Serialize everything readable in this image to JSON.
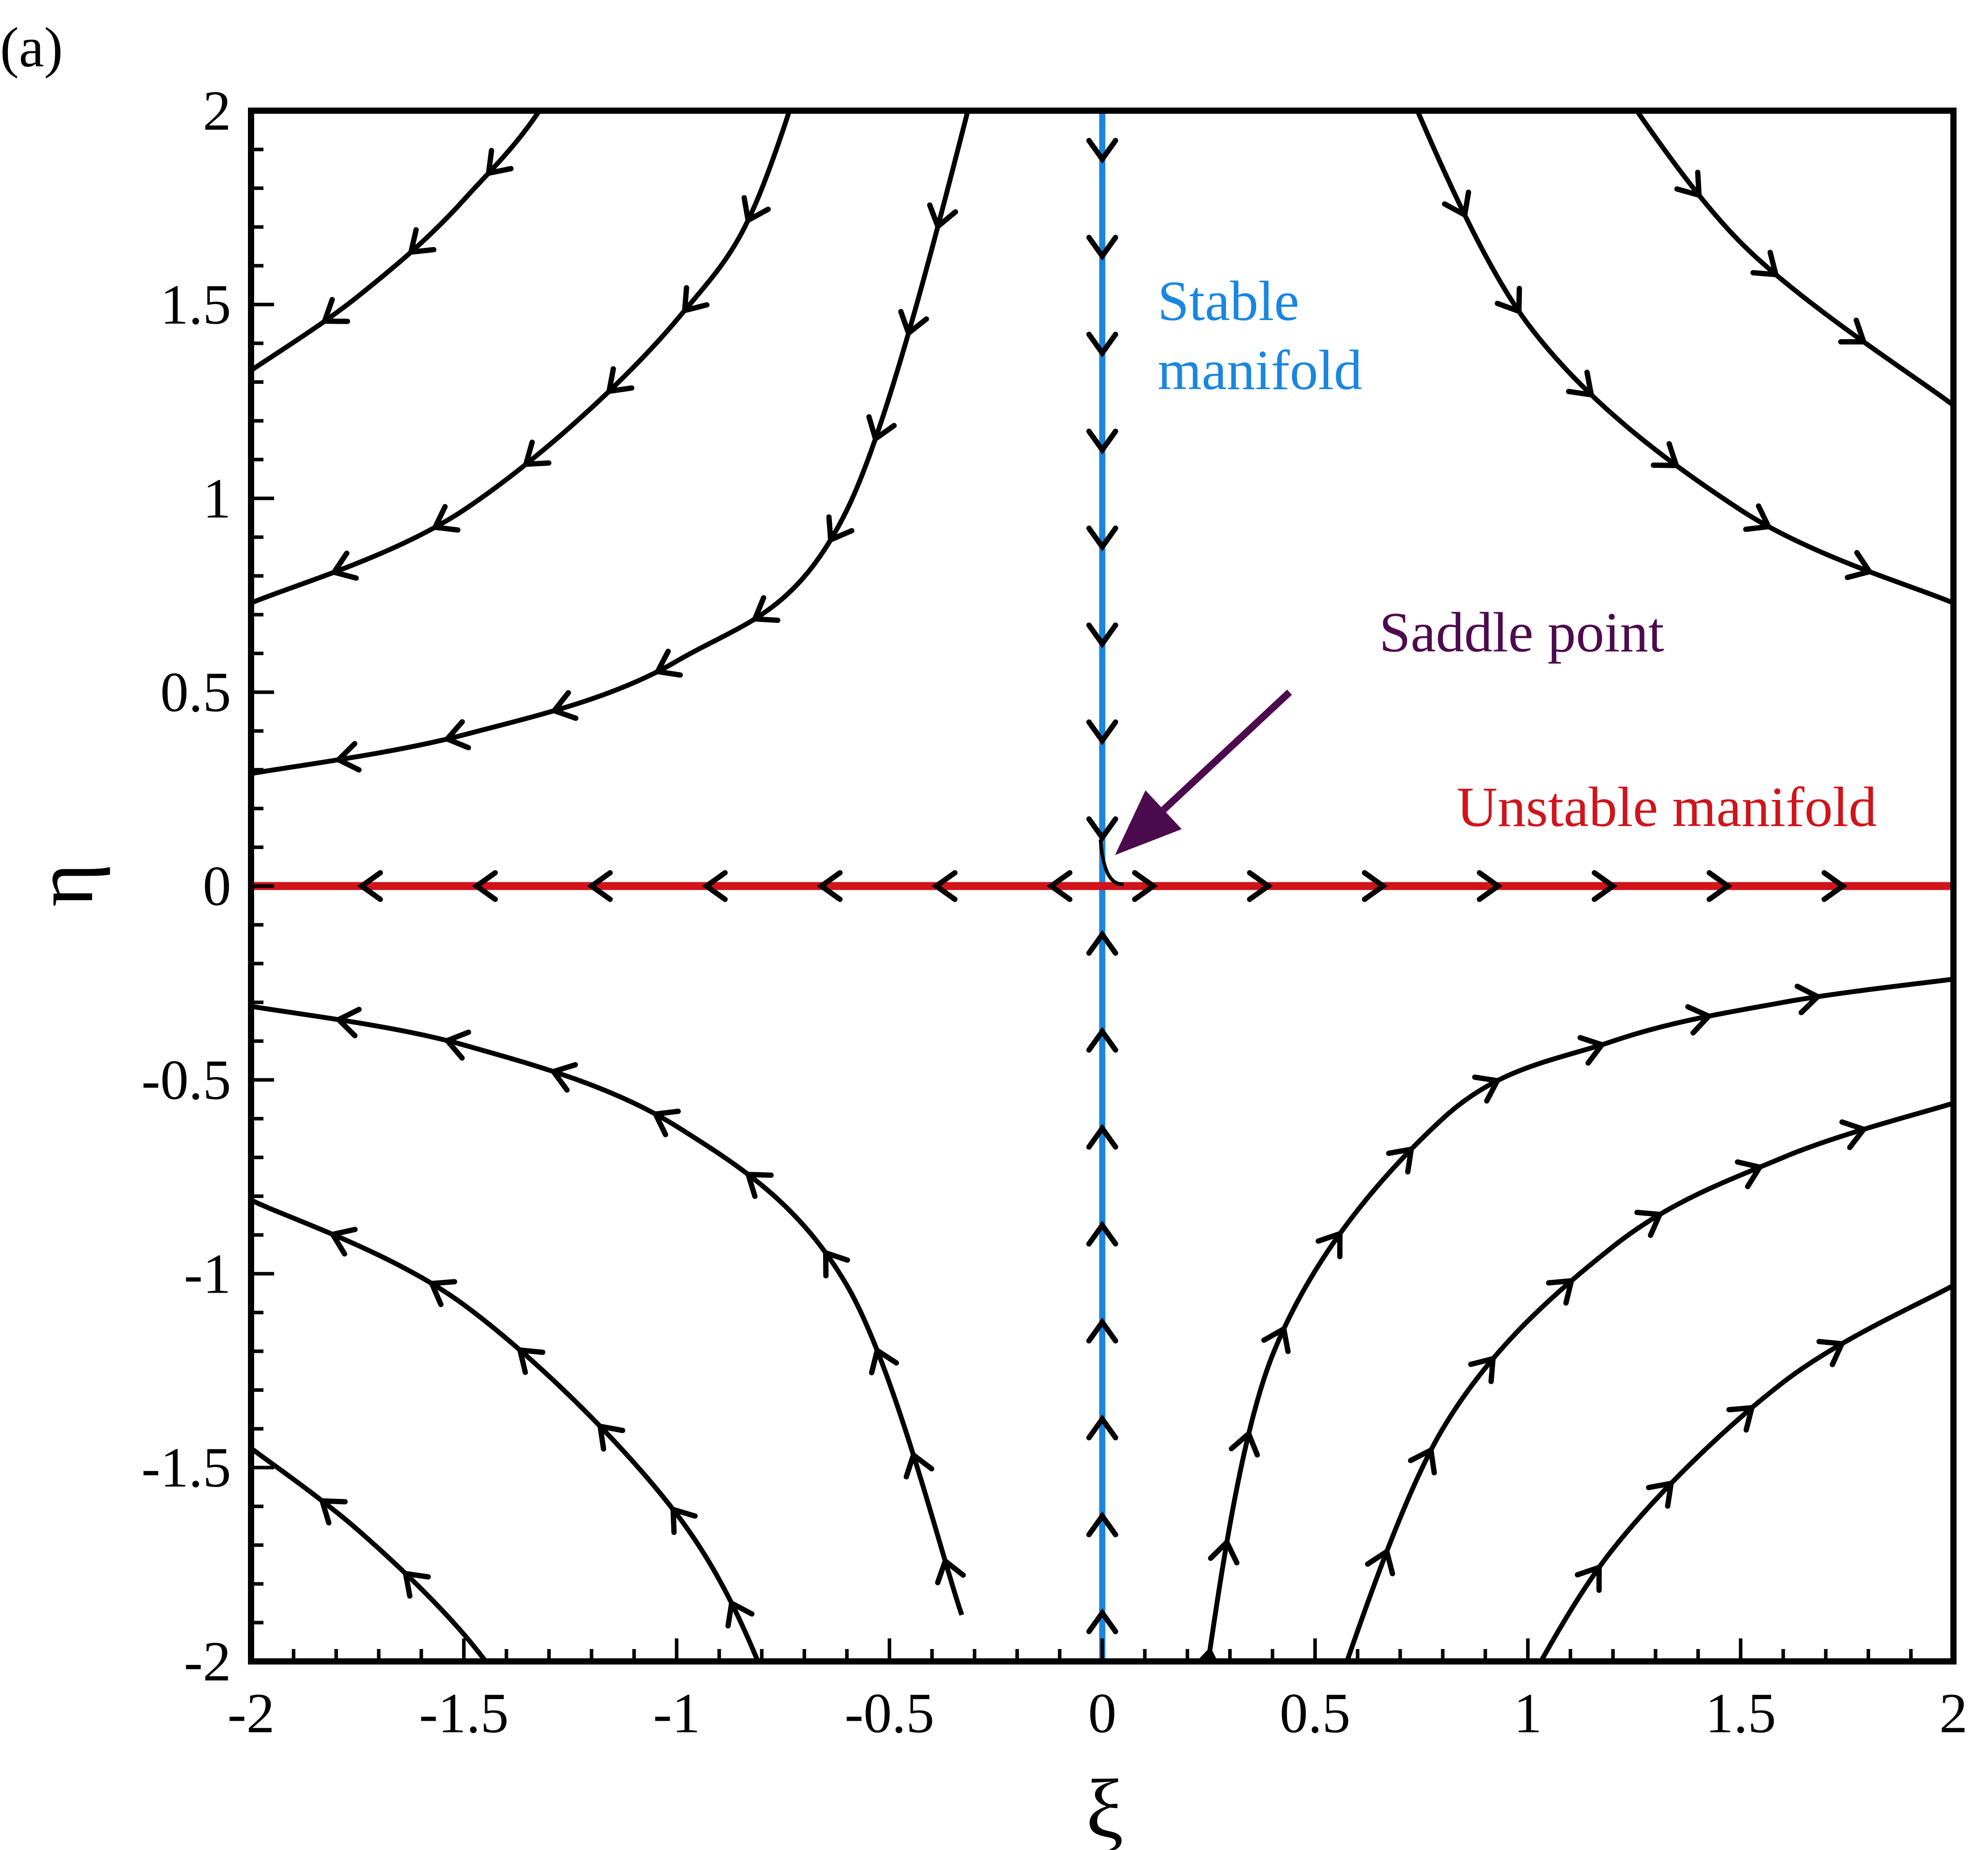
{
  "panel_label": "(a)",
  "chart_data": {
    "type": "line",
    "title": "",
    "xlabel": "ξ",
    "ylabel": "η",
    "xlim": [
      -2,
      2
    ],
    "ylim": [
      -2,
      2
    ],
    "x_ticks": [
      "-2",
      "-1.5",
      "-1",
      "-0.5",
      "0",
      "0.5",
      "1",
      "1.5",
      "2"
    ],
    "y_ticks": [
      "-2",
      "-1.5",
      "-1",
      "-0.5",
      "0",
      "0.5",
      "1",
      "1.5",
      "2"
    ],
    "grid": false,
    "series": [
      {
        "color": "#000000",
        "kind": "trajectory",
        "direction": "outward-left",
        "x": [
          -2.0,
          -1.75,
          -1.5,
          -1.25,
          -0.9
        ],
        "y": [
          1.33,
          1.52,
          1.77,
          2.13,
          2.96
        ]
      },
      {
        "color": "#000000",
        "kind": "trajectory",
        "direction": "outward-left",
        "x": [
          -2.0,
          -1.5,
          -1.0,
          -0.75,
          -0.45
        ],
        "y": [
          0.73,
          0.97,
          1.46,
          1.95,
          3.24
        ]
      },
      {
        "color": "#000000",
        "kind": "trajectory",
        "direction": "outward-left",
        "x": [
          -2.0,
          -1.5,
          -1.0,
          -0.6,
          -0.26
        ],
        "y": [
          0.29,
          0.39,
          0.58,
          0.97,
          2.23
        ]
      },
      {
        "color": "#000000",
        "kind": "trajectory",
        "direction": "outward-right",
        "x": [
          0.66,
          1.0,
          1.5,
          2.0
        ],
        "y": [
          2.2,
          1.45,
          0.97,
          0.73
        ]
      },
      {
        "color": "#000000",
        "kind": "trajectory",
        "direction": "outward-right",
        "x": [
          1.13,
          1.5,
          2.0
        ],
        "y": [
          2.2,
          1.66,
          1.24
        ]
      },
      {
        "color": "#000000",
        "kind": "trajectory",
        "direction": "outward-left",
        "x": [
          -2.0,
          -1.5,
          -1.0,
          -0.6,
          -0.33
        ],
        "y": [
          -0.31,
          -0.41,
          -0.62,
          -1.03,
          -1.88
        ]
      },
      {
        "color": "#000000",
        "kind": "trajectory",
        "direction": "outward-left",
        "x": [
          -2.0,
          -1.5,
          -1.0,
          -0.75,
          -0.6
        ],
        "y": [
          -0.81,
          -1.08,
          -1.62,
          -2.16,
          -2.7
        ]
      },
      {
        "color": "#000000",
        "kind": "trajectory",
        "direction": "outward-left",
        "x": [
          -2.0,
          -1.75,
          -1.5,
          -1.3
        ],
        "y": [
          -1.45,
          -1.66,
          -1.93,
          -2.23
        ]
      },
      {
        "color": "#000000",
        "kind": "trajectory",
        "direction": "outward-right",
        "x": [
          0.22,
          0.4,
          0.8,
          1.2,
          1.6,
          2.0
        ],
        "y": [
          -2.2,
          -1.21,
          -0.6,
          -0.4,
          -0.3,
          -0.24
        ]
      },
      {
        "color": "#000000",
        "kind": "trajectory",
        "direction": "outward-right",
        "x": [
          0.51,
          0.8,
          1.2,
          1.6,
          2.0
        ],
        "y": [
          -2.2,
          -1.4,
          -0.93,
          -0.7,
          -0.56
        ]
      },
      {
        "color": "#000000",
        "kind": "trajectory",
        "direction": "outward-right",
        "x": [
          0.93,
          1.2,
          1.6,
          2.0
        ],
        "y": [
          -2.2,
          -1.71,
          -1.28,
          -1.03
        ]
      },
      {
        "color": "#1a86e0",
        "kind": "stable-manifold",
        "x": [
          0,
          0
        ],
        "y": [
          -2,
          2
        ]
      },
      {
        "color": "#d0141a",
        "kind": "unstable-manifold",
        "x": [
          -2,
          2
        ],
        "y": [
          0,
          0
        ]
      }
    ],
    "annotations": [
      {
        "text_lines": [
          "Stable",
          "manifold"
        ],
        "color": "#1a86e0"
      },
      {
        "text_lines": [
          "Unstable manifold"
        ],
        "color": "#d0141a"
      },
      {
        "text_lines": [
          "Saddle point"
        ],
        "color": "#4d0b4f",
        "arrow_to": [
          0.03,
          0.08
        ]
      }
    ]
  }
}
